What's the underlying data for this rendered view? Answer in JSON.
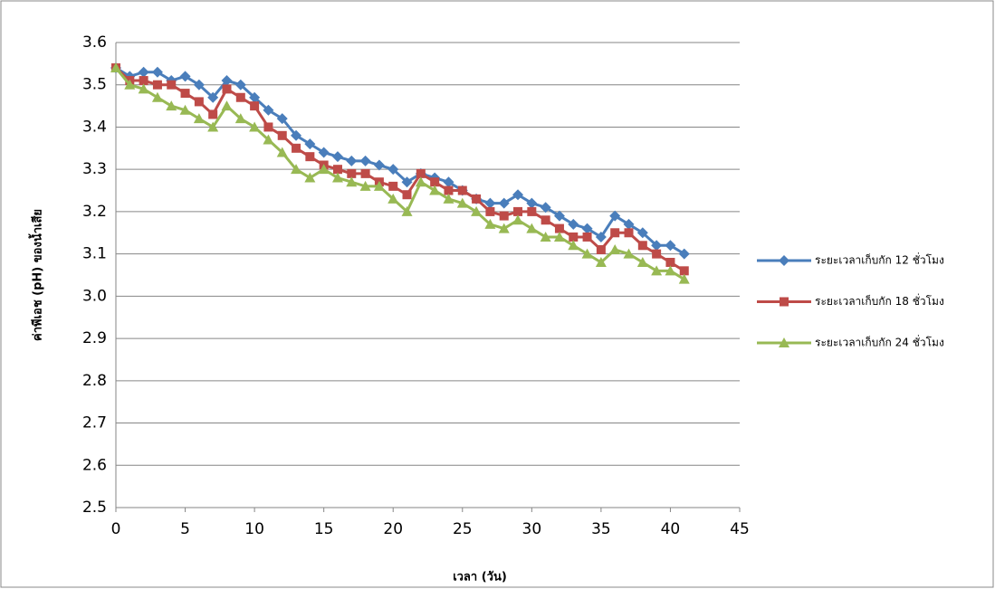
{
  "chart_data": {
    "type": "line",
    "xlabel": "เวลา (วัน)",
    "ylabel": "ค่าพีเอช (pH) ของน้ำเสีย",
    "x": [
      0,
      1,
      2,
      3,
      4,
      5,
      6,
      7,
      8,
      9,
      10,
      11,
      12,
      13,
      14,
      15,
      16,
      17,
      18,
      19,
      20,
      21,
      22,
      23,
      24,
      25,
      26,
      27,
      28,
      29,
      30,
      31,
      32,
      33,
      34,
      35,
      36,
      37,
      38,
      39,
      40,
      41
    ],
    "series": [
      {
        "name": "ระยะเวลาเก็บกัก 12 ชั่วโมง",
        "color": "#4a7ebb",
        "marker": "diamond",
        "values": [
          3.54,
          3.52,
          3.53,
          3.53,
          3.51,
          3.52,
          3.5,
          3.47,
          3.51,
          3.5,
          3.47,
          3.44,
          3.42,
          3.38,
          3.36,
          3.34,
          3.33,
          3.32,
          3.32,
          3.31,
          3.3,
          3.27,
          3.29,
          3.28,
          3.27,
          3.25,
          3.23,
          3.22,
          3.22,
          3.24,
          3.22,
          3.21,
          3.19,
          3.17,
          3.16,
          3.14,
          3.19,
          3.17,
          3.15,
          3.12,
          3.12,
          3.1
        ]
      },
      {
        "name": "ระยะเวลาเก็บกัก 18 ชั่วโมง",
        "color": "#be4b48",
        "marker": "square",
        "values": [
          3.54,
          3.51,
          3.51,
          3.5,
          3.5,
          3.48,
          3.46,
          3.43,
          3.49,
          3.47,
          3.45,
          3.4,
          3.38,
          3.35,
          3.33,
          3.31,
          3.3,
          3.29,
          3.29,
          3.27,
          3.26,
          3.24,
          3.29,
          3.27,
          3.25,
          3.25,
          3.23,
          3.2,
          3.19,
          3.2,
          3.2,
          3.18,
          3.16,
          3.14,
          3.14,
          3.11,
          3.15,
          3.15,
          3.12,
          3.1,
          3.08,
          3.06
        ]
      },
      {
        "name": "ระยะเวลาเก็บกัก 24 ชั่วโมง",
        "color": "#98b954",
        "marker": "triangle",
        "values": [
          3.54,
          3.5,
          3.49,
          3.47,
          3.45,
          3.44,
          3.42,
          3.4,
          3.45,
          3.42,
          3.4,
          3.37,
          3.34,
          3.3,
          3.28,
          3.3,
          3.28,
          3.27,
          3.26,
          3.26,
          3.23,
          3.2,
          3.27,
          3.25,
          3.23,
          3.22,
          3.2,
          3.17,
          3.16,
          3.18,
          3.16,
          3.14,
          3.14,
          3.12,
          3.1,
          3.08,
          3.11,
          3.1,
          3.08,
          3.06,
          3.06,
          3.04
        ]
      }
    ],
    "xlim": [
      0,
      45
    ],
    "xticks": [
      0,
      5,
      10,
      15,
      20,
      25,
      30,
      35,
      40,
      45
    ],
    "ylim": [
      2.5,
      3.6
    ],
    "yticks": [
      2.5,
      2.6,
      2.7,
      2.8,
      2.9,
      {
        "value": 3,
        "label": "3.0"
      },
      3.1,
      3.2,
      3.3,
      3.4,
      3.5,
      3.6
    ],
    "grid": true,
    "legend": "right"
  }
}
